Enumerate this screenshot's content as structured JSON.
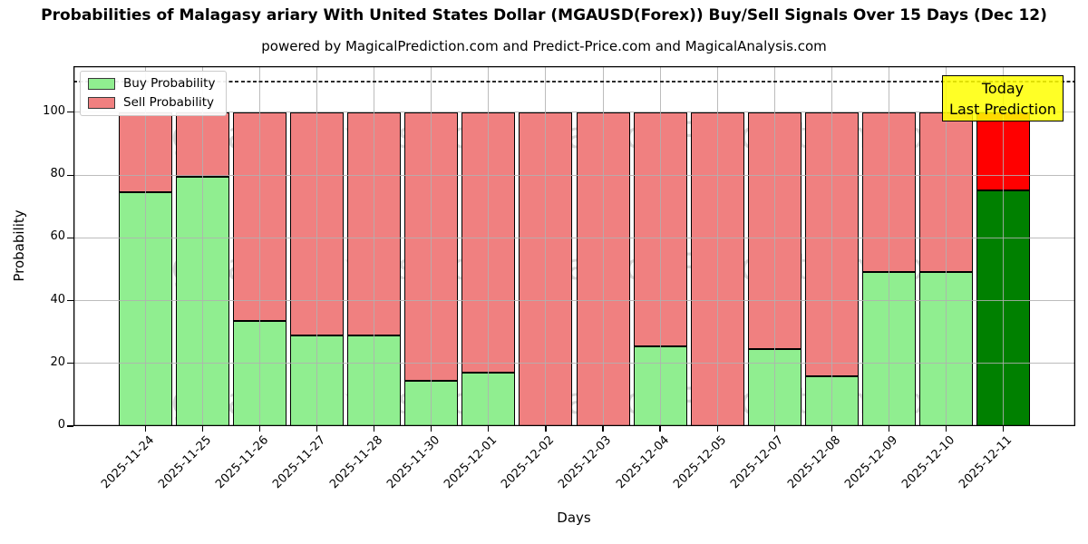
{
  "title": "Probabilities of Malagasy ariary With United States Dollar (MGAUSD(Forex)) Buy/Sell Signals Over 15 Days (Dec 12)",
  "subtitle": "powered by MagicalPrediction.com and Predict-Price.com and MagicalAnalysis.com",
  "axes": {
    "x_label": "Days",
    "y_label": "Probability"
  },
  "legend": [
    {
      "label": "Buy Probability",
      "color": "#90EE90"
    },
    {
      "label": "Sell Probability",
      "color": "#F08080"
    }
  ],
  "annotation": {
    "line1": "Today",
    "line2": "Last Prediction",
    "bg": "#FFFF00"
  },
  "watermarks": {
    "left": "MagicalAnalysis.com",
    "right": "MagicalPrediction.com"
  },
  "chart_data": {
    "type": "bar",
    "stacked": true,
    "title": "Probabilities of Malagasy ariary With United States Dollar (MGAUSD(Forex)) Buy/Sell Signals Over 15 Days (Dec 12)",
    "xlabel": "Days",
    "ylabel": "Probability",
    "categories": [
      "2025-11-24",
      "2025-11-25",
      "2025-11-26",
      "2025-11-27",
      "2025-11-28",
      "2025-11-30",
      "2025-12-01",
      "2025-12-02",
      "2025-12-03",
      "2025-12-04",
      "2025-12-05",
      "2025-12-07",
      "2025-12-08",
      "2025-12-09",
      "2025-12-10",
      "2025-12-11"
    ],
    "series": [
      {
        "name": "Buy Probability",
        "color": "#90EE90",
        "values": [
          74.5,
          79.5,
          33.5,
          29,
          29,
          14.5,
          17,
          0,
          0,
          25.5,
          0,
          24.5,
          16,
          49,
          49,
          75
        ]
      },
      {
        "name": "Sell Probability",
        "color": "#F08080",
        "values": [
          25.5,
          20.5,
          66.5,
          71,
          71,
          85.5,
          83,
          100,
          100,
          74.5,
          100,
          75.5,
          84,
          51,
          51,
          25
        ]
      }
    ],
    "today_index": 15,
    "today_colors": {
      "buy": "#008000",
      "sell": "#FF0000"
    },
    "yticks": [
      0,
      20,
      40,
      60,
      80,
      100
    ],
    "ylim": [
      0,
      114.7
    ],
    "dashed_line_y": 110,
    "grid": true,
    "legend_position": "upper left"
  }
}
